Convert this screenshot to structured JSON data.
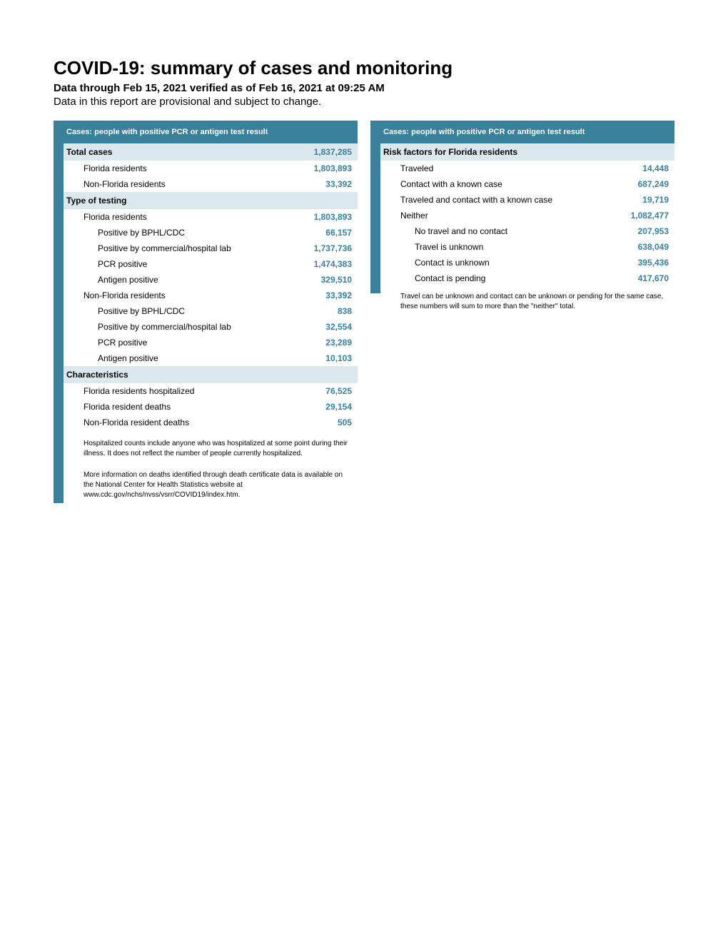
{
  "header": {
    "title": "COVID-19: summary of cases and monitoring",
    "subtitle": "Data through Feb 15, 2021 verified as of Feb 16, 2021 at 09:25 AM",
    "note": "Data in this report are provisional and subject to change."
  },
  "left_panel": {
    "header": "Cases: people with positive PCR or antigen test result",
    "total_cases": {
      "label": "Total cases",
      "value": "1,837,285",
      "rows": [
        {
          "label": "Florida residents",
          "value": "1,803,893",
          "indent": 1
        },
        {
          "label": "Non-Florida residents",
          "value": "33,392",
          "indent": 1
        }
      ]
    },
    "type_testing": {
      "label": "Type of testing",
      "rows": [
        {
          "label": "Florida residents",
          "value": "1,803,893",
          "indent": 1
        },
        {
          "label": "Positive by BPHL/CDC",
          "value": "66,157",
          "indent": 2
        },
        {
          "label": "Positive by commercial/hospital lab",
          "value": "1,737,736",
          "indent": 2
        },
        {
          "label": "PCR positive",
          "value": "1,474,383",
          "indent": 2
        },
        {
          "label": "Antigen positive",
          "value": "329,510",
          "indent": 2
        },
        {
          "label": "Non-Florida residents",
          "value": "33,392",
          "indent": 1
        },
        {
          "label": "Positive by BPHL/CDC",
          "value": "838",
          "indent": 2
        },
        {
          "label": "Positive by commercial/hospital lab",
          "value": "32,554",
          "indent": 2
        },
        {
          "label": "PCR positive",
          "value": "23,289",
          "indent": 2
        },
        {
          "label": "Antigen positive",
          "value": "10,103",
          "indent": 2
        }
      ]
    },
    "characteristics": {
      "label": "Characteristics",
      "rows": [
        {
          "label": "Florida residents hospitalized",
          "value": "76,525",
          "indent": 1
        },
        {
          "label": "Florida resident deaths",
          "value": "29,154",
          "indent": 1
        },
        {
          "label": "Non-Florida resident deaths",
          "value": "505",
          "indent": 1
        }
      ]
    },
    "footnote1": "Hospitalized counts include anyone who was hospitalized at some point during their illness. It does not reflect the number of people currently hospitalized.",
    "footnote2": "More information on deaths identified through death certificate data is available on the National Center for Health Statistics website at www.cdc.gov/nchs/nvss/vsrr/COVID19/index.htm."
  },
  "right_panel": {
    "header": "Cases: people with positive PCR or antigen test result",
    "risk_factors": {
      "label": "Risk factors for Florida residents",
      "rows": [
        {
          "label": "Traveled",
          "value": "14,448",
          "indent": 1
        },
        {
          "label": "Contact with a known case",
          "value": "687,249",
          "indent": 1
        },
        {
          "label": "Traveled and contact with a known case",
          "value": "19,719",
          "indent": 1
        },
        {
          "label": "Neither",
          "value": "1,082,477",
          "indent": 1
        },
        {
          "label": "No travel and no contact",
          "value": "207,953",
          "indent": 2
        },
        {
          "label": "Travel is unknown",
          "value": "638,049",
          "indent": 2
        },
        {
          "label": "Contact is unknown",
          "value": "395,436",
          "indent": 2
        },
        {
          "label": "Contact is pending",
          "value": "417,670",
          "indent": 2
        }
      ]
    },
    "footnote": "Travel can be unknown and contact can be unknown or pending for the same case, these numbers will sum to more than the \"neither\" total."
  },
  "colors": {
    "accent": "#3a809b",
    "section_bg": "#dbe9ee",
    "text": "#000000",
    "bg": "#ffffff"
  }
}
